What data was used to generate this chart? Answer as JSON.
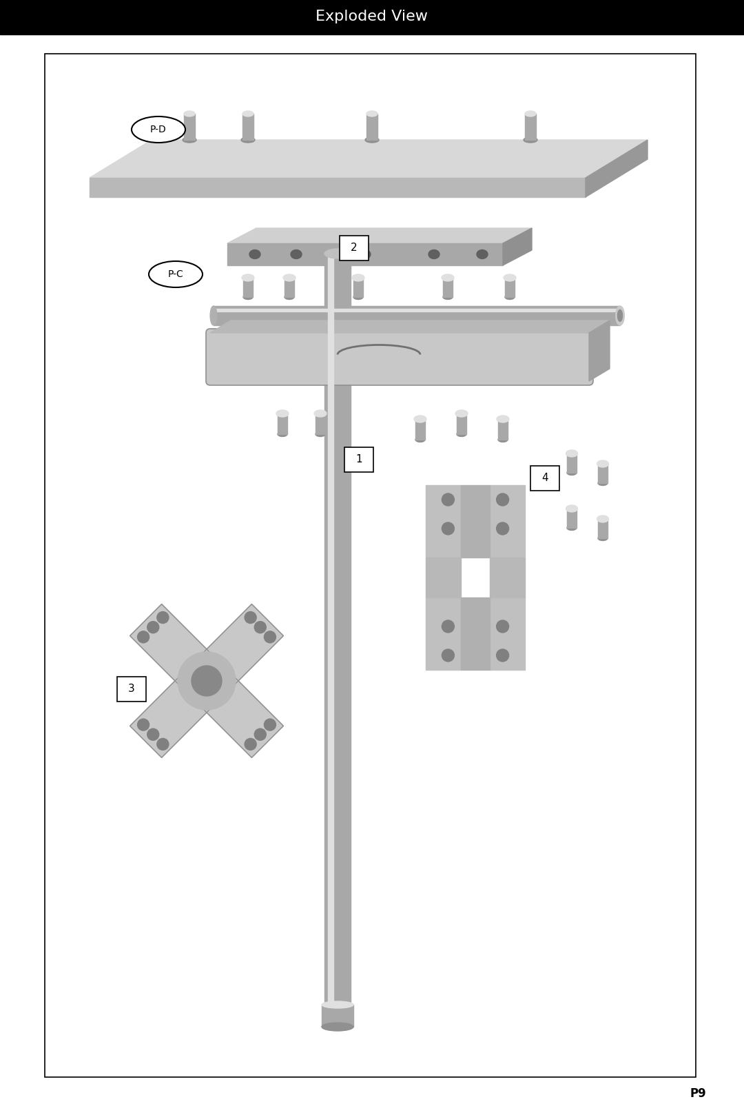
{
  "title": "Exploded View",
  "page_number": "P9",
  "background_color": "#ffffff",
  "title_bar_color": "#000000",
  "title_text_color": "#ffffff",
  "title_fontsize": 16,
  "border_color": "#000000",
  "light_gray": "#c8c8c8",
  "mid_gray": "#a8a8a8",
  "dark_gray": "#707070",
  "highlight_gray": "#e0e0e0"
}
